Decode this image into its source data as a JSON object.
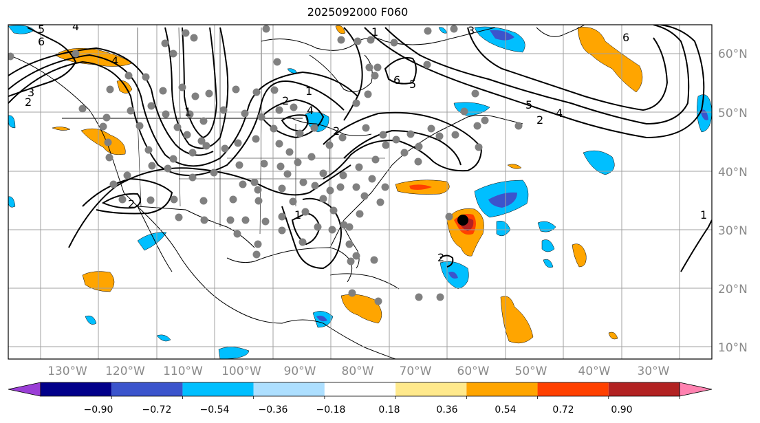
{
  "title": "2025092000 F060",
  "map": {
    "lat_labels": [
      "60°N",
      "50°N",
      "40°N",
      "30°N",
      "20°N",
      "10°N"
    ],
    "lon_labels": [
      "130°W",
      "120°W",
      "110°W",
      "100°W",
      "90°W",
      "80°W",
      "70°W",
      "60°W",
      "50°W",
      "40°W",
      "30°W"
    ],
    "contour_labels": [
      "6",
      "5",
      "4",
      "3",
      "2",
      "1",
      "6",
      "5",
      "4",
      "2",
      "1",
      "2",
      "4",
      "6",
      "5",
      "4",
      "2",
      "1",
      "3",
      "2",
      "1",
      "2",
      "1"
    ],
    "storm_marker": "black-dot"
  },
  "colorbar": {
    "tick_labels": [
      "−0.90",
      "−0.72",
      "−0.54",
      "−0.36",
      "−0.18",
      "0.18",
      "0.36",
      "0.54",
      "0.72",
      "0.90"
    ],
    "colors": [
      "#9a3ed6",
      "#02008a",
      "#3b54cc",
      "#00bfff",
      "#addfff",
      "#ffffff",
      "#ffe98c",
      "#ffa500",
      "#ff4000",
      "#b22222",
      "#ff82b0"
    ]
  },
  "colors": {
    "neg_light": "#addfff",
    "neg_mid": "#00bfff",
    "neg_strong": "#3b54cc",
    "pos_light": "#ffe98c",
    "pos_mid": "#ffa500",
    "pos_strong": "#ff4000",
    "pos_max": "#b22222",
    "station": "#808080"
  }
}
